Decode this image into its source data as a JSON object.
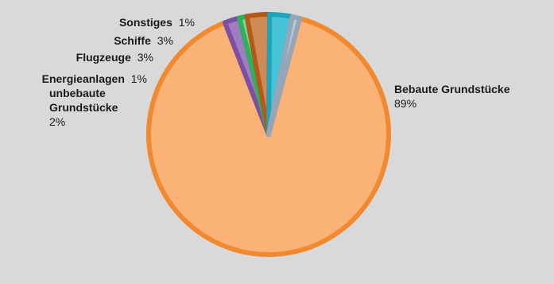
{
  "chart_data": {
    "type": "pie",
    "title": "",
    "slices": [
      {
        "label": "Bebaute Grundstücke",
        "value": 89,
        "value_label": "89%",
        "fill": "#fbb276",
        "stroke": "#f0892f"
      },
      {
        "label": "unbebaute Grundstücke",
        "label_lines": [
          "unbebaute",
          "Grundstücke"
        ],
        "value": 2,
        "value_label": "2%",
        "fill": "#a07cc0",
        "stroke": "#7b4fa3"
      },
      {
        "label": "Energieanlagen",
        "value": 1,
        "value_label": "1%",
        "fill": "#7fd39a",
        "stroke": "#2fb15a"
      },
      {
        "label": "Flugzeuge",
        "value": 3,
        "value_label": "3%",
        "fill": "#cf8a55",
        "stroke": "#b15a1a"
      },
      {
        "label": "Schiffe",
        "value": 3,
        "value_label": "3%",
        "fill": "#46c3d6",
        "stroke": "#1ea3b8"
      },
      {
        "label": "Sonstiges",
        "value": 1,
        "value_label": "1%",
        "fill": "#bcc7d4",
        "stroke": "#96a6b8"
      }
    ],
    "start_angle_deg": 15,
    "direction": "clockwise",
    "legend": "none",
    "labels": "outside"
  }
}
